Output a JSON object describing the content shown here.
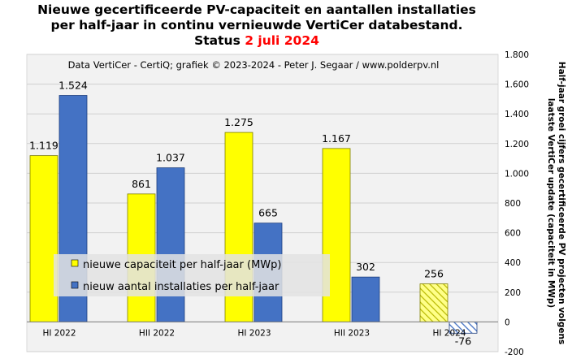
{
  "chart_data": {
    "type": "bar",
    "title_lines": [
      "Nieuwe gecertificeerde PV-capaciteit en aantallen installaties",
      "per half-jaar in continu vernieuwde VertiCer databestand."
    ],
    "status_prefix": "Status ",
    "status_date": "2 juli 2024",
    "credit": "Data VertiCer - CertiQ; grafiek © 2023-2024 - Peter J. Segaar / www.polderpv.nl",
    "ylabel_right_lines": [
      "Half-jaar groei cijfers gecertificeerde PV projecten volgens",
      "laatste VertiCer update (capaciteit in MWp)"
    ],
    "categories": [
      "HI 2022",
      "HII 2022",
      "HI 2023",
      "HII 2023",
      "HI 2024"
    ],
    "series": [
      {
        "name": "nieuwe capaciteit per half-jaar (MWp)",
        "values": [
          1119,
          861,
          1275,
          1167,
          256
        ],
        "labels": [
          "1.119",
          "861",
          "1.275",
          "1.167",
          "256"
        ],
        "color": "#ffff00"
      },
      {
        "name": "nieuw aantal installaties per half-jaar",
        "values": [
          1524,
          1037,
          665,
          302,
          -76
        ],
        "labels": [
          "1.524",
          "1.037",
          "665",
          "302",
          "-76"
        ],
        "color": "#4472c4"
      }
    ],
    "hatched_category": "HI 2024",
    "ylim": [
      -200,
      1800
    ],
    "yticks": [
      -200,
      0,
      200,
      400,
      600,
      800,
      1000,
      1200,
      1400,
      1600,
      1800
    ],
    "ytick_labels": [
      "-200",
      "0",
      "200",
      "400",
      "600",
      "800",
      "1.000",
      "1.200",
      "1.400",
      "1.600",
      "1.800"
    ],
    "y_axis_side": "right",
    "grid": "horizontal",
    "legend_position": "lower-left"
  }
}
